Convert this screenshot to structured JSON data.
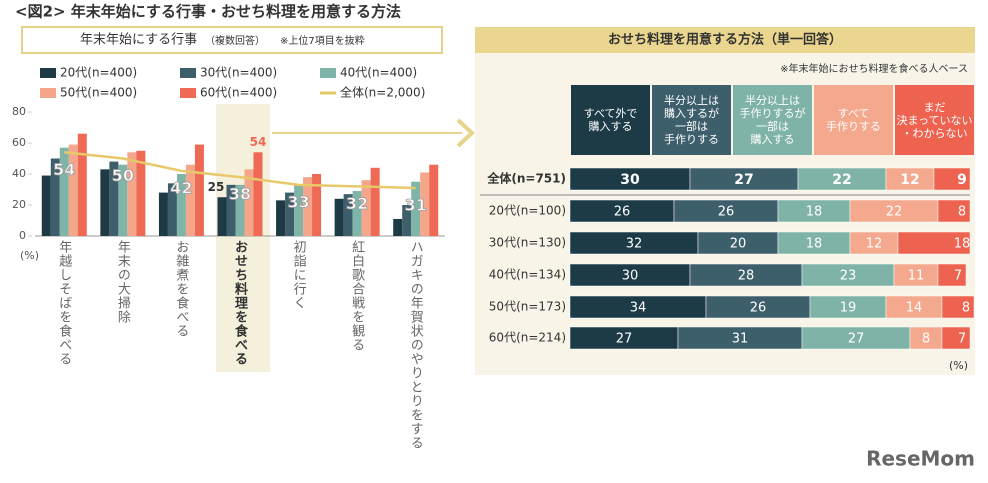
{
  "header": "<図2> 年末年始にする行事・おせち料理を用意する方法",
  "watermark": "ReseMom",
  "chart_data": [
    {
      "type": "bar",
      "title": "年末年始にする行事",
      "subtitle": "（複数回答）",
      "note": "※上位7項目を抜粋",
      "y_unit": "(%)",
      "categories": [
        "年越しそばを食べる",
        "年末の大掃除",
        "お雑煮を食べる",
        "おせち料理を食べる",
        "初詣に行く",
        "紅白歌合戦を観る",
        "ハガキの年賀状のやりとりをする"
      ],
      "highlight": 3,
      "series": [
        {
          "name": "20代(n=400)",
          "color": "#1e3a44",
          "values": [
            39,
            43,
            28,
            25,
            23,
            24,
            11
          ],
          "show_label_at": 3
        },
        {
          "name": "30代(n=400)",
          "color": "#3f5e6b",
          "values": [
            50,
            48,
            34,
            33,
            28,
            27,
            20
          ]
        },
        {
          "name": "40代(n=400)",
          "color": "#7fb5a8",
          "values": [
            57,
            46,
            40,
            33,
            33,
            29,
            35
          ]
        },
        {
          "name": "50代(n=400)",
          "color": "#f4a58a",
          "values": [
            59,
            54,
            46,
            43,
            38,
            36,
            41
          ]
        },
        {
          "name": "60代(n=400)",
          "color": "#ee6a55",
          "values": [
            66,
            55,
            59,
            54,
            40,
            44,
            46
          ],
          "show_label_at": 3
        },
        {
          "name": "全体(n=2,000)",
          "color": "#e8c96a",
          "type": "line",
          "values": [
            54,
            50,
            42,
            38,
            33,
            32,
            31
          ],
          "show_labels": true
        }
      ],
      "ylim": [
        0,
        80
      ],
      "yticks": [
        0,
        20,
        40,
        60,
        80
      ]
    },
    {
      "type": "stacked_bar_h",
      "title": "おせち料理を用意する方法（単一回答）",
      "note": "※年末年始におせち料理を食べる人ベース",
      "x_unit": "(%)",
      "categories": [
        "全体(n=751)",
        "20代(n=100)",
        "30代(n=130)",
        "40代(n=134)",
        "50代(n=173)",
        "60代(n=214)"
      ],
      "series": [
        {
          "name": "すべて外で\n購入する",
          "color": "#1c3b47",
          "values": [
            30,
            26,
            32,
            30,
            34,
            27
          ]
        },
        {
          "name": "半分以上は\n購入するが\n一部は\n手作りする",
          "color": "#3d5f6c",
          "values": [
            27,
            26,
            20,
            28,
            26,
            31
          ]
        },
        {
          "name": "半分以上は\n手作りするが\n一部は\n購入する",
          "color": "#7fb3a7",
          "values": [
            22,
            18,
            18,
            23,
            19,
            27
          ]
        },
        {
          "name": "すべて\n手作りする",
          "color": "#f4a88e",
          "values": [
            12,
            22,
            12,
            11,
            14,
            8
          ]
        },
        {
          "name": "まだ\n決まっていない\n・わからない",
          "color": "#ee6350",
          "values": [
            9,
            8,
            18,
            7,
            8,
            7
          ]
        }
      ],
      "xlim": [
        0,
        100
      ]
    }
  ]
}
